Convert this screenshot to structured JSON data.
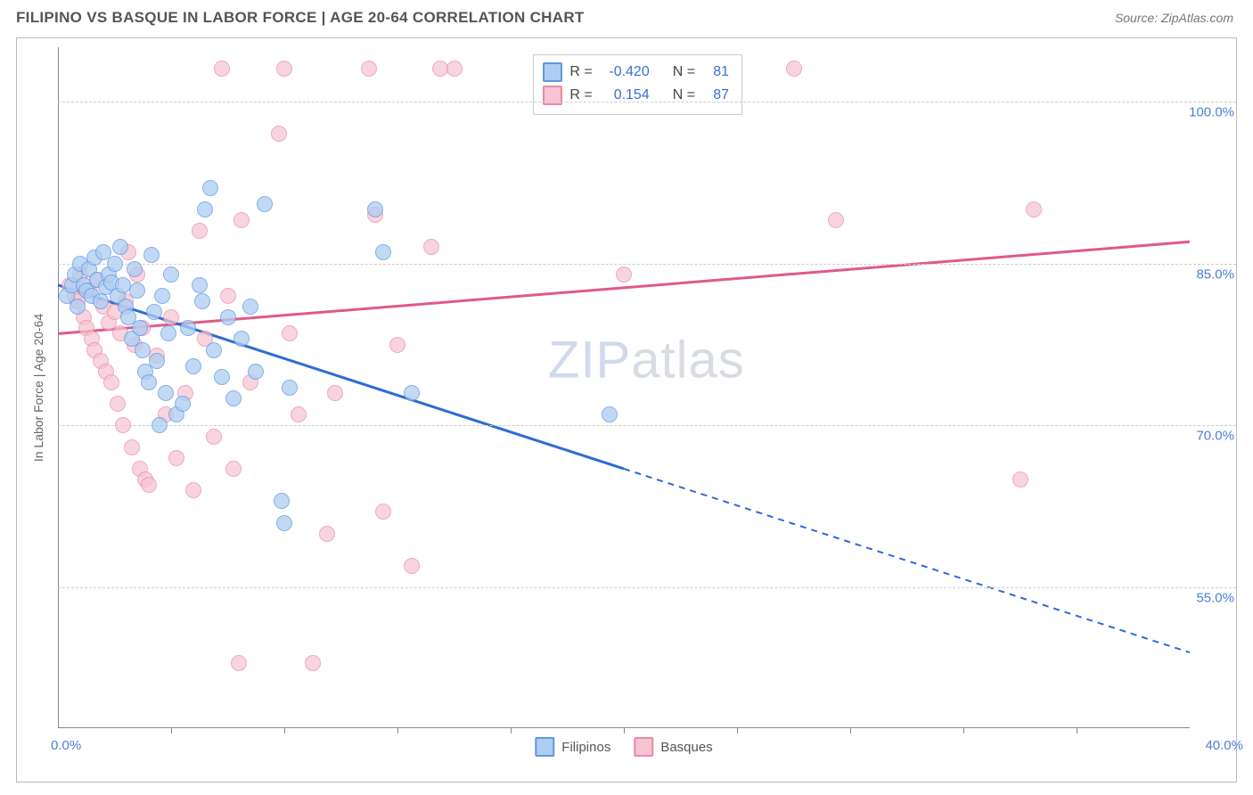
{
  "header": {
    "title": "FILIPINO VS BASQUE IN LABOR FORCE | AGE 20-64 CORRELATION CHART",
    "source_text": "Source: ZipAtlas.com"
  },
  "axes": {
    "ylabel": "In Labor Force | Age 20-64",
    "x_min": 0,
    "x_max": 40,
    "y_min": 42,
    "y_max": 105,
    "x_ticks": [
      4,
      8,
      12,
      16,
      20,
      24,
      28,
      32,
      36
    ],
    "y_ticks": [
      55,
      70,
      85,
      100
    ],
    "y_tick_labels": [
      "55.0%",
      "70.0%",
      "85.0%",
      "100.0%"
    ],
    "x_label_min": "0.0%",
    "x_label_max": "40.0%",
    "grid_color": "#cccccc",
    "axis_color": "#888888",
    "tick_label_color": "#4a7fd8",
    "tick_label_fontsize": 15
  },
  "series": {
    "filipinos": {
      "label": "Filipinos",
      "fill": "#aecdf2",
      "stroke": "#5f97df",
      "point_radius": 9,
      "point_opacity": 0.75,
      "R": "-0.420",
      "N": "81",
      "trend": {
        "x1": 0,
        "y1": 83,
        "x2": 20,
        "y2": 66,
        "x2_ext": 40,
        "y2_ext": 49,
        "stroke": "#2e6bd4",
        "width": 3
      },
      "points": [
        [
          0.3,
          82
        ],
        [
          0.5,
          83
        ],
        [
          0.6,
          84
        ],
        [
          0.7,
          81
        ],
        [
          0.8,
          85
        ],
        [
          0.9,
          83
        ],
        [
          1.0,
          82.5
        ],
        [
          1.1,
          84.5
        ],
        [
          1.2,
          82
        ],
        [
          1.3,
          85.5
        ],
        [
          1.4,
          83.5
        ],
        [
          1.5,
          81.5
        ],
        [
          1.6,
          86
        ],
        [
          1.7,
          82.8
        ],
        [
          1.8,
          84
        ],
        [
          1.9,
          83.2
        ],
        [
          2.0,
          85
        ],
        [
          2.1,
          82
        ],
        [
          2.2,
          86.5
        ],
        [
          2.3,
          83
        ],
        [
          2.4,
          81
        ],
        [
          2.5,
          80
        ],
        [
          2.6,
          78
        ],
        [
          2.7,
          84.5
        ],
        [
          2.8,
          82.5
        ],
        [
          2.9,
          79
        ],
        [
          3.0,
          77
        ],
        [
          3.1,
          75
        ],
        [
          3.2,
          74
        ],
        [
          3.3,
          85.8
        ],
        [
          3.4,
          80.5
        ],
        [
          3.5,
          76
        ],
        [
          3.6,
          70
        ],
        [
          3.7,
          82
        ],
        [
          3.8,
          73
        ],
        [
          3.9,
          78.5
        ],
        [
          4.0,
          84
        ],
        [
          4.2,
          71
        ],
        [
          4.4,
          72
        ],
        [
          4.6,
          79
        ],
        [
          4.8,
          75.5
        ],
        [
          5.0,
          83
        ],
        [
          5.1,
          81.5
        ],
        [
          5.2,
          90
        ],
        [
          5.4,
          92
        ],
        [
          5.5,
          77
        ],
        [
          5.8,
          74.5
        ],
        [
          6.0,
          80
        ],
        [
          6.2,
          72.5
        ],
        [
          7.9,
          63
        ],
        [
          6.5,
          78
        ],
        [
          6.8,
          81
        ],
        [
          7.0,
          75
        ],
        [
          7.3,
          90.5
        ],
        [
          8.0,
          61
        ],
        [
          8.2,
          73.5
        ],
        [
          11.2,
          90
        ],
        [
          11.5,
          86
        ],
        [
          12.5,
          73
        ],
        [
          19.5,
          71
        ]
      ]
    },
    "basques": {
      "label": "Basques",
      "fill": "#f6c4d2",
      "stroke": "#e98aa7",
      "point_radius": 9,
      "point_opacity": 0.72,
      "R": "0.154",
      "N": "87",
      "trend": {
        "x1": 0,
        "y1": 78.5,
        "x2": 40,
        "y2": 87,
        "stroke": "#e05a84",
        "width": 3
      },
      "points": [
        [
          0.4,
          83
        ],
        [
          0.6,
          82
        ],
        [
          0.7,
          81.5
        ],
        [
          0.8,
          84
        ],
        [
          0.9,
          80
        ],
        [
          1.0,
          79
        ],
        [
          1.1,
          82.5
        ],
        [
          1.2,
          78
        ],
        [
          1.3,
          77
        ],
        [
          1.4,
          83.5
        ],
        [
          1.5,
          76
        ],
        [
          1.6,
          81
        ],
        [
          1.7,
          75
        ],
        [
          1.8,
          79.5
        ],
        [
          1.9,
          74
        ],
        [
          2.0,
          80.5
        ],
        [
          2.1,
          72
        ],
        [
          2.2,
          78.5
        ],
        [
          2.3,
          70
        ],
        [
          2.4,
          81.5
        ],
        [
          2.5,
          86
        ],
        [
          2.6,
          68
        ],
        [
          2.7,
          77.5
        ],
        [
          2.8,
          84
        ],
        [
          2.9,
          66
        ],
        [
          3.0,
          79
        ],
        [
          3.1,
          65
        ],
        [
          3.2,
          64.5
        ],
        [
          3.5,
          76.5
        ],
        [
          3.8,
          71
        ],
        [
          4.0,
          80
        ],
        [
          4.2,
          67
        ],
        [
          4.5,
          73
        ],
        [
          4.8,
          64
        ],
        [
          5.0,
          88
        ],
        [
          5.2,
          78
        ],
        [
          5.5,
          69
        ],
        [
          5.8,
          103
        ],
        [
          6.0,
          82
        ],
        [
          6.2,
          66
        ],
        [
          6.4,
          48
        ],
        [
          6.5,
          89
        ],
        [
          6.8,
          74
        ],
        [
          7.8,
          97
        ],
        [
          8.0,
          103
        ],
        [
          8.2,
          78.5
        ],
        [
          8.5,
          71
        ],
        [
          9.0,
          48
        ],
        [
          9.5,
          60
        ],
        [
          9.8,
          73
        ],
        [
          11.0,
          103
        ],
        [
          11.2,
          89.5
        ],
        [
          11.5,
          62
        ],
        [
          12.0,
          77.5
        ],
        [
          12.5,
          57
        ],
        [
          13.2,
          86.5
        ],
        [
          13.5,
          103
        ],
        [
          14.0,
          103
        ],
        [
          20.0,
          84
        ],
        [
          26.0,
          103
        ],
        [
          27.5,
          89
        ],
        [
          34.5,
          90
        ],
        [
          34.0,
          65
        ]
      ]
    }
  },
  "stats_box": {
    "rows": [
      {
        "swatch": "filipinos",
        "Rlabel": "R =",
        "R": "-0.420",
        "Nlabel": "N =",
        "N": "81"
      },
      {
        "swatch": "basques",
        "Rlabel": "R =",
        "R": "0.154",
        "Nlabel": "N =",
        "N": "87"
      }
    ]
  },
  "legend_bottom": {
    "items": [
      {
        "key": "filipinos",
        "label": "Filipinos"
      },
      {
        "key": "basques",
        "label": "Basques"
      }
    ]
  },
  "watermark": {
    "left": "ZIP",
    "right": "atlas"
  },
  "colors": {
    "bg": "#ffffff",
    "title": "#555555",
    "source": "#777777"
  }
}
